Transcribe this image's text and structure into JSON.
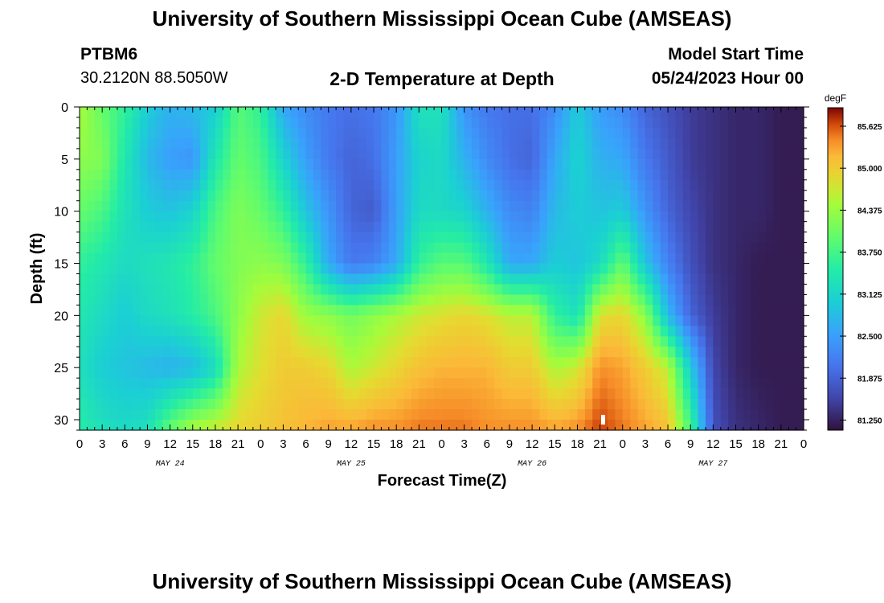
{
  "header": {
    "title": "University of Southern Mississippi Ocean Cube (AMSEAS)",
    "station": "PTBM6",
    "coords": "30.2120N  88.5050W",
    "subtitle": "2-D Temperature at Depth",
    "model_start_label": "Model Start Time",
    "model_start_value": "05/24/2023 Hour 00"
  },
  "footer_title": "University of Southern Mississippi Ocean Cube (AMSEAS)",
  "chart_data": {
    "type": "heatmap",
    "title": "2-D Temperature at Depth",
    "xlabel": "Forecast Time(Z)",
    "ylabel": "Depth (ft)",
    "x_range_hours": [
      0,
      96
    ],
    "y_range_ft": [
      0,
      31
    ],
    "x_tick_labels": [
      "0",
      "3",
      "6",
      "9",
      "12",
      "15",
      "18",
      "21",
      "0",
      "3",
      "6",
      "9",
      "12",
      "15",
      "18",
      "21",
      "0",
      "3",
      "6",
      "9",
      "12",
      "15",
      "18",
      "21",
      "0",
      "3",
      "6",
      "9",
      "12",
      "15",
      "18",
      "21",
      "0"
    ],
    "y_ticks": [
      0,
      5,
      10,
      15,
      20,
      25,
      30
    ],
    "day_labels": [
      {
        "label": "MAY 24",
        "hour": 12
      },
      {
        "label": "MAY 25",
        "hour": 36
      },
      {
        "label": "MAY 26",
        "hour": 60
      },
      {
        "label": "MAY 27",
        "hour": 84
      }
    ],
    "colorbar": {
      "unit": "degF",
      "min": 81.1,
      "max": 85.9,
      "ticks": [
        "85.625",
        "85.000",
        "84.375",
        "83.750",
        "83.125",
        "82.500",
        "81.875",
        "81.250"
      ]
    },
    "depth_profile_ft": [
      0,
      5,
      10,
      15,
      20,
      25,
      31
    ],
    "temperature_columns_degF": [
      {
        "hour": 0,
        "values": [
          84.5,
          84.3,
          84.0,
          83.6,
          83.4,
          83.3,
          83.5
        ]
      },
      {
        "hour": 3,
        "values": [
          84.0,
          84.2,
          83.8,
          83.4,
          83.2,
          83.0,
          83.3
        ]
      },
      {
        "hour": 6,
        "values": [
          83.6,
          83.4,
          83.3,
          83.2,
          83.0,
          82.9,
          83.2
        ]
      },
      {
        "hour": 9,
        "values": [
          83.0,
          82.8,
          83.0,
          83.3,
          83.2,
          82.8,
          83.3
        ]
      },
      {
        "hour": 12,
        "values": [
          82.7,
          82.5,
          82.9,
          83.4,
          83.3,
          82.7,
          84.0
        ]
      },
      {
        "hour": 15,
        "values": [
          82.8,
          82.4,
          83.1,
          83.6,
          83.5,
          82.8,
          84.5
        ]
      },
      {
        "hour": 18,
        "values": [
          83.0,
          83.4,
          83.8,
          84.0,
          83.8,
          83.2,
          84.7
        ]
      },
      {
        "hour": 21,
        "values": [
          83.9,
          84.0,
          84.2,
          84.2,
          84.3,
          84.5,
          84.9
        ]
      },
      {
        "hour": 24,
        "values": [
          83.6,
          83.8,
          84.0,
          84.3,
          84.7,
          84.8,
          85.0
        ]
      },
      {
        "hour": 27,
        "values": [
          82.6,
          83.1,
          83.6,
          84.2,
          84.9,
          85.0,
          85.1
        ]
      },
      {
        "hour": 30,
        "values": [
          82.3,
          82.5,
          82.9,
          83.6,
          84.4,
          85.0,
          85.2
        ]
      },
      {
        "hour": 33,
        "values": [
          82.1,
          82.1,
          82.4,
          82.6,
          84.3,
          84.9,
          85.3
        ]
      },
      {
        "hour": 36,
        "values": [
          82.0,
          81.9,
          81.9,
          82.1,
          84.1,
          84.5,
          85.3
        ]
      },
      {
        "hour": 39,
        "values": [
          82.1,
          82.0,
          81.8,
          82.2,
          84.3,
          84.7,
          85.4
        ]
      },
      {
        "hour": 42,
        "values": [
          82.4,
          82.5,
          82.5,
          82.6,
          84.5,
          84.9,
          85.4
        ]
      },
      {
        "hour": 45,
        "values": [
          83.3,
          83.1,
          83.2,
          83.6,
          84.7,
          85.1,
          85.5
        ]
      },
      {
        "hour": 48,
        "values": [
          83.3,
          83.2,
          83.2,
          83.9,
          84.8,
          85.2,
          85.5
        ]
      },
      {
        "hour": 51,
        "values": [
          82.4,
          82.7,
          83.1,
          83.9,
          84.9,
          85.2,
          85.5
        ]
      },
      {
        "hour": 54,
        "values": [
          82.1,
          82.3,
          82.7,
          83.4,
          84.8,
          85.2,
          85.4
        ]
      },
      {
        "hour": 57,
        "values": [
          82.0,
          82.0,
          82.3,
          82.6,
          84.6,
          85.0,
          85.4
        ]
      },
      {
        "hour": 60,
        "values": [
          82.0,
          81.9,
          82.2,
          82.6,
          84.6,
          85.0,
          85.4
        ]
      },
      {
        "hour": 63,
        "values": [
          82.3,
          82.6,
          82.8,
          83.0,
          83.6,
          84.5,
          85.3
        ]
      },
      {
        "hour": 66,
        "values": [
          83.0,
          83.1,
          83.0,
          82.9,
          83.3,
          84.7,
          85.4
        ]
      },
      {
        "hour": 69,
        "values": [
          82.5,
          82.7,
          82.9,
          83.2,
          84.8,
          85.4,
          85.7
        ]
      },
      {
        "hour": 72,
        "values": [
          82.3,
          82.6,
          83.0,
          84.0,
          84.9,
          85.3,
          85.5
        ]
      },
      {
        "hour": 75,
        "values": [
          81.9,
          82.1,
          82.4,
          82.9,
          84.3,
          85.0,
          85.3
        ]
      },
      {
        "hour": 78,
        "values": [
          81.7,
          81.8,
          81.9,
          82.2,
          82.8,
          84.6,
          85.1
        ]
      },
      {
        "hour": 81,
        "values": [
          81.5,
          81.5,
          81.6,
          81.7,
          81.9,
          83.0,
          83.8
        ]
      },
      {
        "hour": 84,
        "values": [
          81.4,
          81.4,
          81.4,
          81.4,
          81.5,
          81.6,
          81.7
        ]
      },
      {
        "hour": 87,
        "values": [
          81.3,
          81.3,
          81.3,
          81.3,
          81.3,
          81.3,
          81.4
        ]
      },
      {
        "hour": 90,
        "values": [
          81.3,
          81.3,
          81.3,
          81.2,
          81.2,
          81.2,
          81.3
        ]
      },
      {
        "hour": 93,
        "values": [
          81.2,
          81.2,
          81.2,
          81.2,
          81.2,
          81.2,
          81.2
        ]
      },
      {
        "hour": 96,
        "values": [
          81.2,
          81.2,
          81.2,
          81.2,
          81.2,
          81.2,
          81.2
        ]
      }
    ]
  }
}
